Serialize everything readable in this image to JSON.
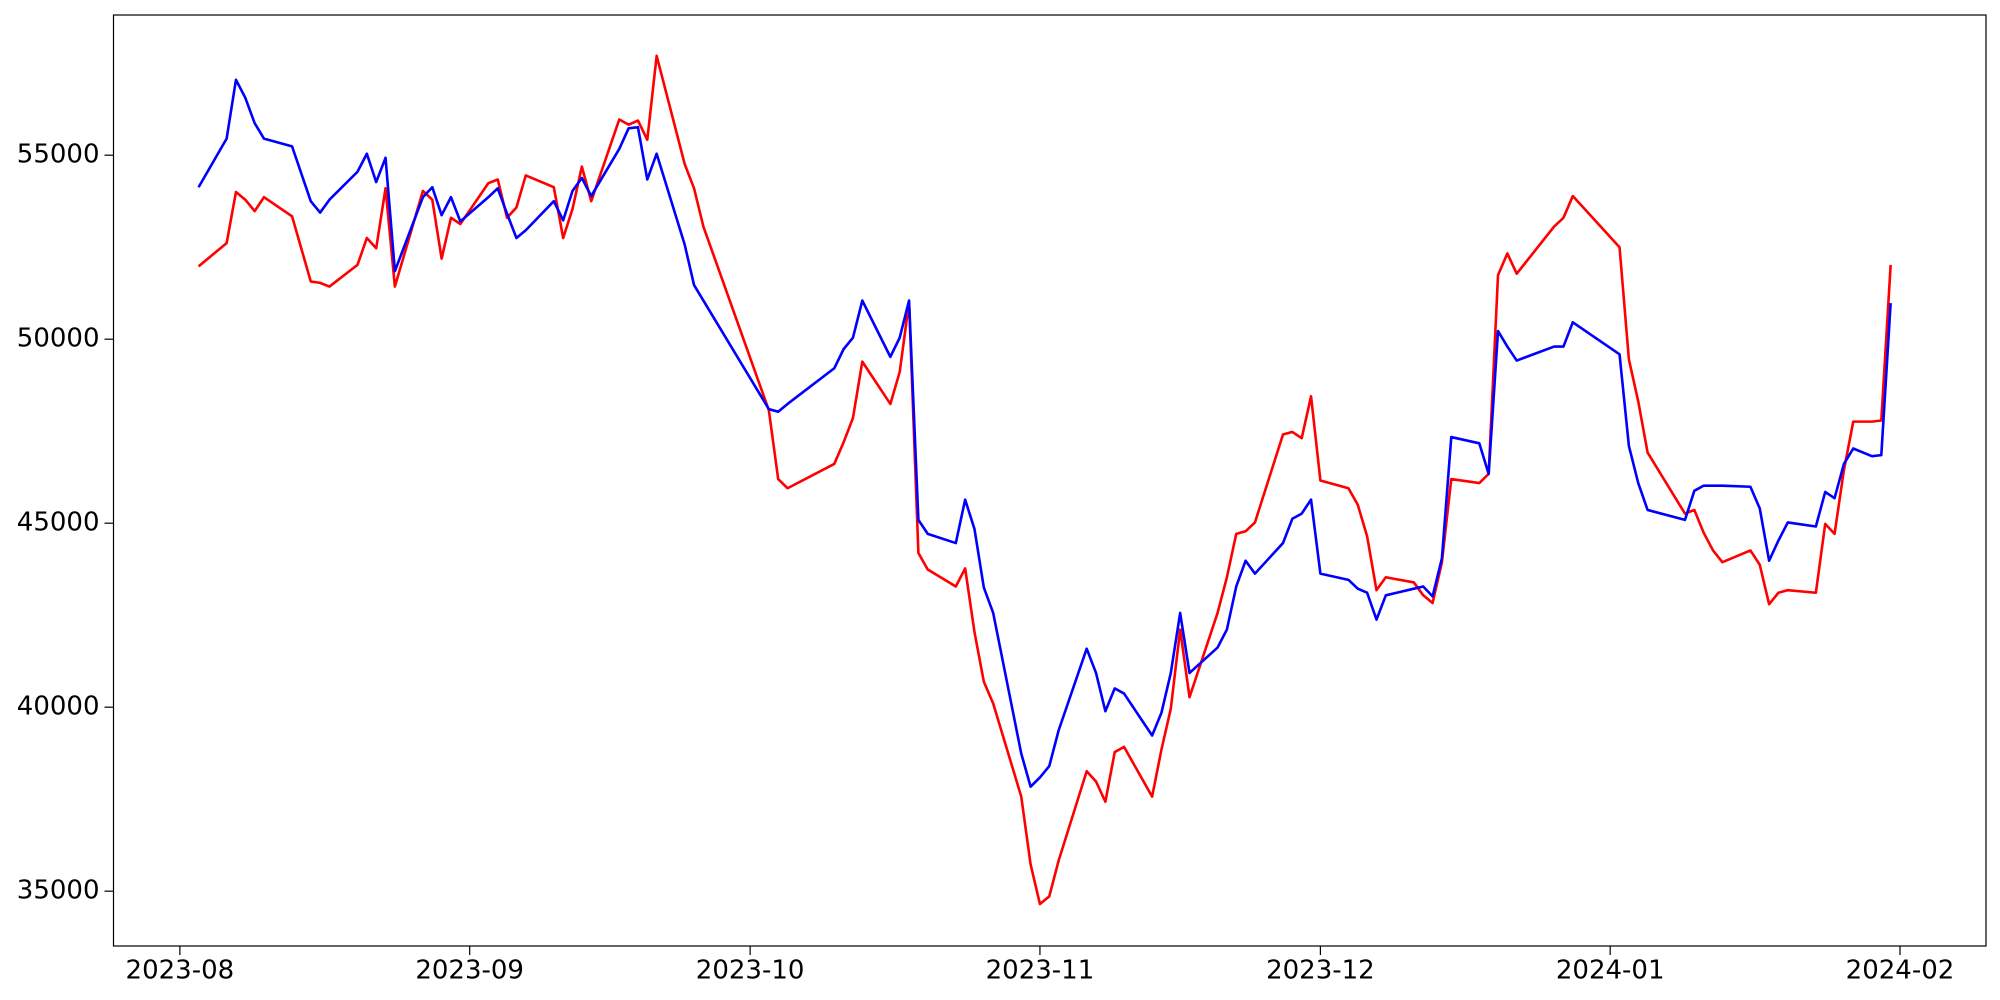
{
  "chart_data": {
    "type": "line",
    "x": [
      2,
      5,
      6,
      7,
      8,
      9,
      12,
      14,
      15,
      16,
      19,
      20,
      21,
      22,
      23,
      26,
      27,
      28,
      29,
      30,
      33,
      34,
      35,
      36,
      37,
      40,
      41,
      42,
      43,
      44,
      47,
      48,
      49,
      50,
      51,
      54,
      55,
      56,
      63,
      64,
      65,
      70,
      71,
      72,
      73,
      76,
      77,
      78,
      79,
      80,
      83,
      84,
      85,
      86,
      87,
      90,
      91,
      92,
      93,
      94,
      97,
      98,
      99,
      100,
      101,
      104,
      105,
      106,
      107,
      108,
      111,
      112,
      113,
      114,
      115,
      118,
      119,
      120,
      121,
      122,
      125,
      126,
      127,
      128,
      129,
      132,
      133,
      134,
      135,
      136,
      139,
      140,
      141,
      142,
      143,
      147,
      148,
      149,
      154,
      155,
      156,
      157,
      161,
      162,
      163,
      164,
      165,
      168,
      169,
      170,
      171,
      172,
      175,
      176,
      177,
      178,
      179,
      181,
      182,
      183
    ],
    "series": [
      {
        "color": "red",
        "values": [
          51980,
          52610,
          54000,
          53790,
          53480,
          53860,
          53340,
          51570,
          51530,
          51430,
          52020,
          52750,
          52470,
          54100,
          51430,
          54030,
          53790,
          52190,
          53300,
          53130,
          54240,
          54340,
          53300,
          53580,
          54450,
          54130,
          52750,
          53540,
          54690,
          53750,
          55970,
          55830,
          55940,
          55420,
          57700,
          54760,
          54100,
          53060,
          48070,
          46200,
          45950,
          46610,
          47200,
          47860,
          49390,
          48240,
          49110,
          51010,
          44190,
          43740,
          43280,
          43770,
          42040,
          40690,
          40100,
          37570,
          35730,
          34650,
          34860,
          35830,
          38260,
          37980,
          37430,
          38780,
          38920,
          37570,
          38850,
          39960,
          42110,
          40270,
          42560,
          43530,
          44710,
          44780,
          45020,
          47410,
          47480,
          47310,
          48450,
          46160,
          45950,
          45500,
          44640,
          43180,
          43530,
          43390,
          43040,
          42830,
          43940,
          46200,
          46090,
          46340,
          51740,
          52330,
          51780,
          53060,
          53300,
          53890,
          52500,
          49450,
          48310,
          46920,
          45260,
          45360,
          44740,
          44260,
          43940,
          44260,
          43870,
          42800,
          43110,
          43180,
          43110,
          44980,
          44710,
          46440,
          47760,
          47760,
          47790,
          52020
        ]
      },
      {
        "color": "blue",
        "values": [
          54130,
          55450,
          57050,
          56560,
          55870,
          55450,
          55240,
          53750,
          53440,
          53790,
          54550,
          55040,
          54270,
          54930,
          51850,
          53860,
          54130,
          53370,
          53860,
          53200,
          53860,
          54100,
          53410,
          52750,
          52960,
          53750,
          53230,
          54030,
          54380,
          53890,
          55170,
          55730,
          55760,
          54340,
          55040,
          52570,
          51470,
          51050,
          48100,
          48030,
          48240,
          49210,
          49730,
          50040,
          51050,
          49520,
          50040,
          51050,
          45090,
          44710,
          44460,
          45640,
          44840,
          43250,
          42560,
          38740,
          37840,
          38090,
          38400,
          39370,
          41590,
          40930,
          39890,
          40510,
          40370,
          39230,
          39850,
          40930,
          42560,
          40930,
          41620,
          42110,
          43280,
          43980,
          43630,
          44460,
          45120,
          45260,
          45640,
          43630,
          43460,
          43220,
          43110,
          42380,
          43040,
          43220,
          43280,
          43010,
          44050,
          47340,
          47170,
          46340,
          50220,
          49800,
          49420,
          49800,
          49800,
          50460,
          49590,
          47100,
          46090,
          45360,
          45090,
          45880,
          46020,
          46020,
          46020,
          45990,
          45400,
          43980,
          44530,
          45020,
          44910,
          45850,
          45680,
          46610,
          47030,
          46820,
          46850,
          50980
        ]
      }
    ],
    "xlim": [
      -7.1,
      193.2
    ],
    "xticks": [
      {
        "value": 0,
        "label": "2023-08"
      },
      {
        "value": 31,
        "label": "2023-09"
      },
      {
        "value": 61,
        "label": "2023-10"
      },
      {
        "value": 92,
        "label": "2023-11"
      },
      {
        "value": 122,
        "label": "2023-12"
      },
      {
        "value": 153,
        "label": "2024-01"
      },
      {
        "value": 184,
        "label": "2024-02"
      }
    ],
    "ylim": [
      33510,
      58810
    ],
    "yticks": [
      35000,
      40000,
      45000,
      50000,
      55000
    ],
    "grid": false
  }
}
